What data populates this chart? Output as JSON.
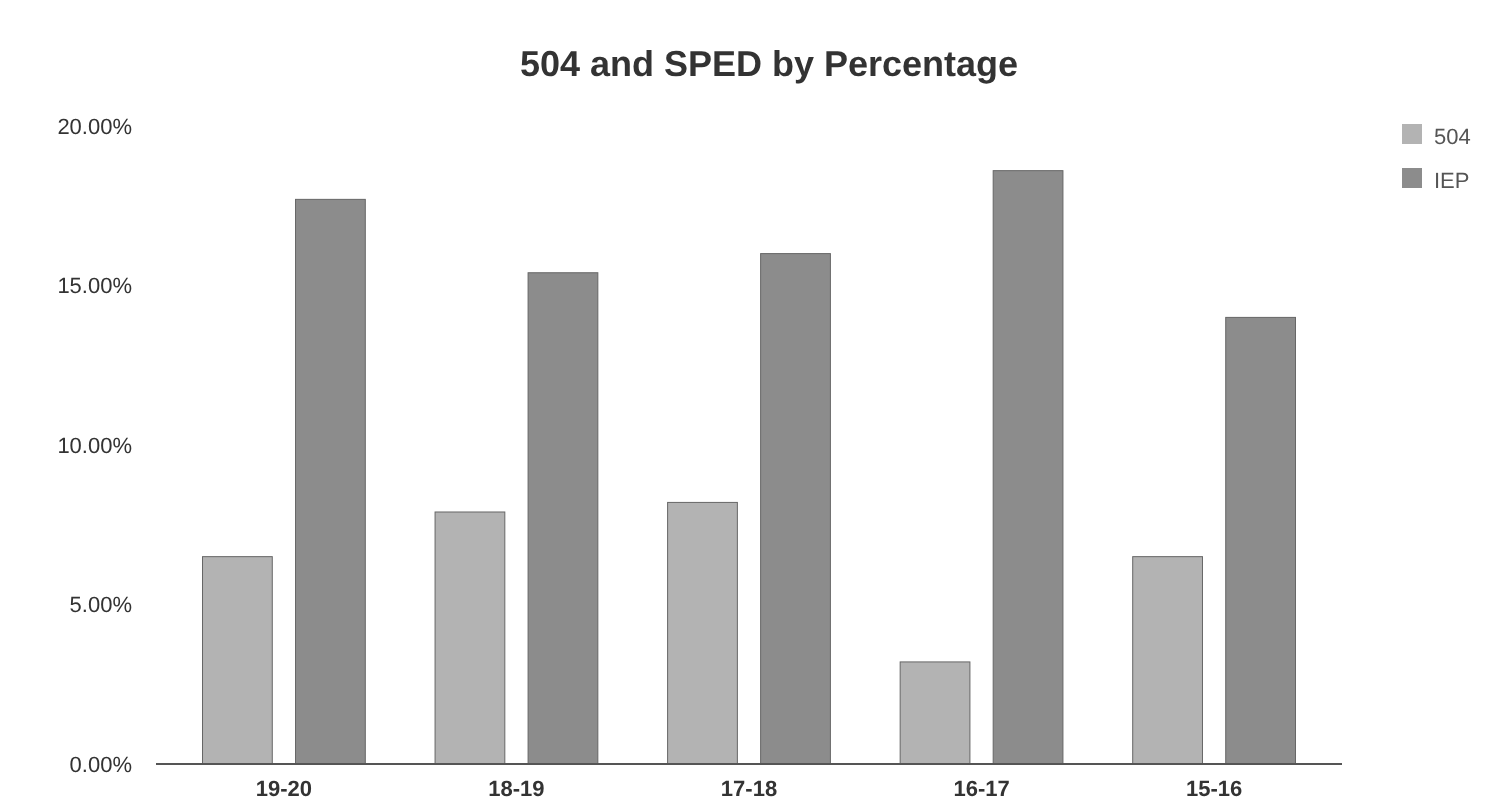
{
  "chart_data": {
    "type": "bar",
    "title": "504 and SPED by Percentage",
    "categories": [
      "19-20",
      "18-19",
      "17-18",
      "16-17",
      "15-16"
    ],
    "series": [
      {
        "name": "504",
        "color": "#b3b3b3",
        "values": [
          6.5,
          7.9,
          8.2,
          3.2,
          6.5
        ]
      },
      {
        "name": "IEP",
        "color": "#8c8c8c",
        "values": [
          17.7,
          15.4,
          16.0,
          18.6,
          14.0
        ]
      }
    ],
    "ylim": [
      0,
      20
    ],
    "yticks": [
      {
        "value": 0,
        "label": "0.00%"
      },
      {
        "value": 5,
        "label": "5.00%"
      },
      {
        "value": 10,
        "label": "10.00%"
      },
      {
        "value": 15,
        "label": "15.00%"
      },
      {
        "value": 20,
        "label": "20.00%"
      }
    ],
    "legend": "top right"
  }
}
